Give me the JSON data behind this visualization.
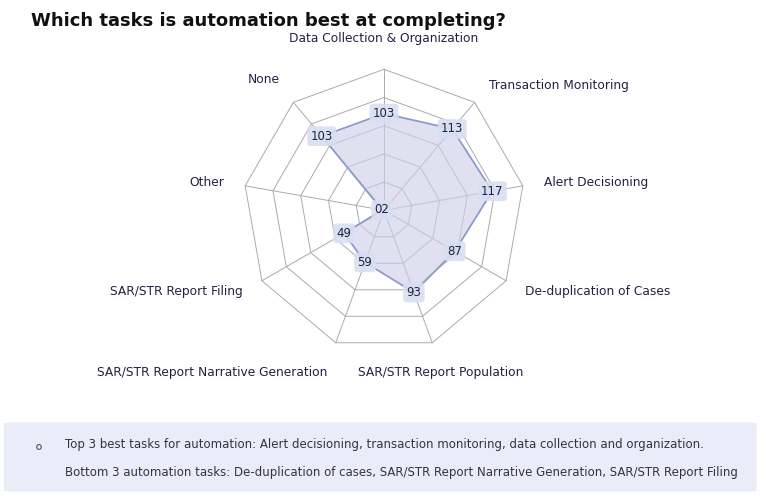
{
  "title": "Which tasks is automation best at completing?",
  "categories": [
    "Data Collection & Organization",
    "Transaction Monitoring",
    "Alert Decisioning",
    "De-duplication of Cases",
    "SAR/STR Report Population",
    "SAR/STR Report Narrative Generation",
    "SAR/STR Report Filing",
    "Other",
    "None"
  ],
  "values": [
    103,
    113,
    117,
    87,
    93,
    59,
    49,
    2,
    103
  ],
  "max_value": 150,
  "num_rings": 5,
  "fill_color_top": "#d0d8ee",
  "fill_color_bottom": "#e0d0e8",
  "fill_alpha": 0.55,
  "grid_color": "#aaaaaa",
  "background_color": "#ffffff",
  "label_bg_color": "#d8dff0",
  "label_fontsize": 9,
  "title_fontsize": 13,
  "note_bg_color": "#eaedf8",
  "note_text1": "Top 3 best tasks for automation: Alert decisioning, transaction monitoring, data collection and organization.",
  "note_text2": "Bottom 3 automation tasks: De-duplication of cases, SAR/STR Report Narrative Generation, SAR/STR Report Filing",
  "note_fontsize": 8.5,
  "cat_label_offsets": [
    0,
    0,
    0,
    0,
    0,
    0,
    0,
    0,
    0
  ]
}
